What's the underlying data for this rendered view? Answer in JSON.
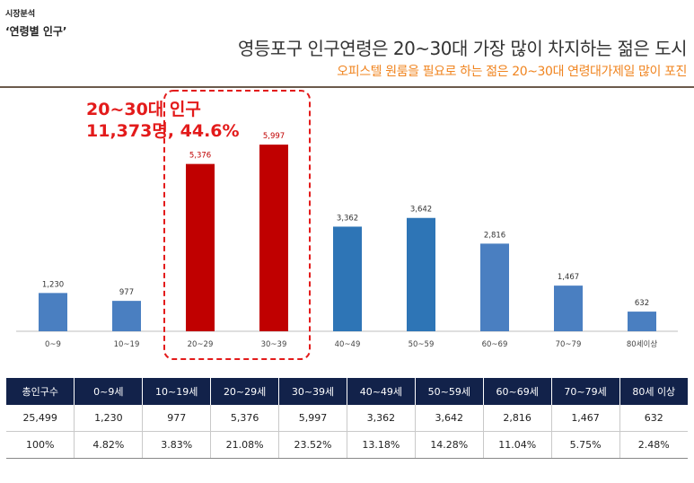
{
  "header": {
    "section_small": "시장분석",
    "section_title": "‘연령별 인구’",
    "headline": "영등포구 인구연령은 20~30대 가장 많이 차지하는 젊은 도시",
    "subline": "오피스텔 원룸을 필요로 하는 젊은 20~30대 연령대가제일 많이 포진"
  },
  "callout": {
    "line1": "20~30대 인구",
    "line2": "11,373명, 44.6%"
  },
  "colors": {
    "bar_default": "#4a7fc1",
    "bar_highlight": "#c00000",
    "bar_mid": "#2e75b6",
    "highlight_box": "#e31b1b",
    "table_header": "#12224a"
  },
  "chart_data": {
    "type": "bar",
    "categories": [
      "0~9",
      "10~19",
      "20~29",
      "30~39",
      "40~49",
      "50~59",
      "60~69",
      "70~79",
      "80세이상"
    ],
    "values": [
      1230,
      977,
      5376,
      5997,
      3362,
      3642,
      2816,
      1467,
      632
    ],
    "value_labels": [
      "1,230",
      "977",
      "5,376",
      "5,997",
      "3,362",
      "3,642",
      "2,816",
      "1,467",
      "632"
    ],
    "highlighted_categories": [
      "20~29",
      "30~39"
    ],
    "ylim": [
      0,
      6500
    ],
    "grid": false,
    "legend": "none"
  },
  "table": {
    "headers": [
      "총인구수",
      "0~9세",
      "10~19세",
      "20~29세",
      "30~39세",
      "40~49세",
      "50~59세",
      "60~69세",
      "70~79세",
      "80세 이상"
    ],
    "rows": [
      [
        "25,499",
        "1,230",
        "977",
        "5,376",
        "5,997",
        "3,362",
        "3,642",
        "2,816",
        "1,467",
        "632"
      ],
      [
        "100%",
        "4.82%",
        "3.83%",
        "21.08%",
        "23.52%",
        "13.18%",
        "14.28%",
        "11.04%",
        "5.75%",
        "2.48%"
      ]
    ]
  }
}
